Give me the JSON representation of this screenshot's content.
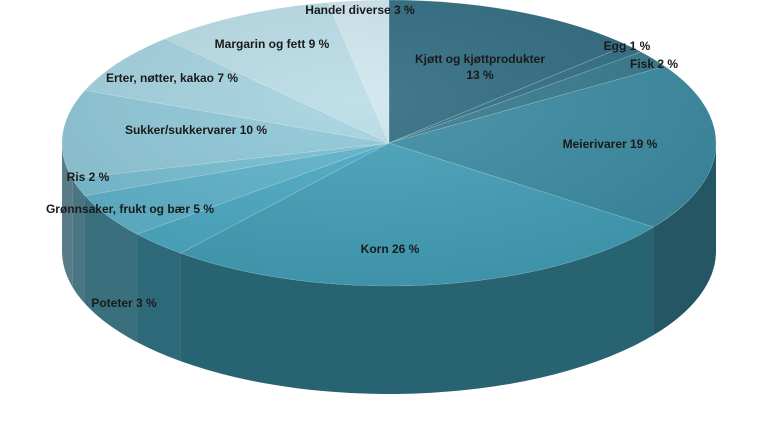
{
  "chart_data": {
    "type": "pie",
    "title": "",
    "style": "3d",
    "start_angle_deg": -90,
    "direction": "clockwise",
    "slices": [
      {
        "name": "Kjøtt og kjøttprodukter",
        "value": 13,
        "label": "Kjøtt og kjøttprodukter 13 %",
        "color": "#2f6b80"
      },
      {
        "name": "Egg",
        "value": 1,
        "label": "Egg 1 %",
        "color": "#306f84"
      },
      {
        "name": "Fisk",
        "value": 2,
        "label": "Fisk 2 %",
        "color": "#367a8e"
      },
      {
        "name": "Meierivarer",
        "value": 19,
        "label": "Meierivarer 19 %",
        "color": "#3b8ba2"
      },
      {
        "name": "Korn",
        "value": 26,
        "label": "Korn 26 %",
        "color": "#419fb8"
      },
      {
        "name": "Poteter",
        "value": 3,
        "label": "Poteter 3 %",
        "color": "#4aa9c4"
      },
      {
        "name": "Grønnsaker, frukt og bær",
        "value": 5,
        "label": "Grønnsaker, frukt og bær 5 %",
        "color": "#5db3cb"
      },
      {
        "name": "Ris",
        "value": 2,
        "label": "Ris 2 %",
        "color": "#76bed2"
      },
      {
        "name": "Sukker/sukkervarer",
        "value": 10,
        "label": "Sukker/sukkervarer 10 %",
        "color": "#8ec8d9"
      },
      {
        "name": "Erter, nøtter, kakao",
        "value": 7,
        "label": "Erter, nøtter, kakao 7 %",
        "color": "#a4d2e0"
      },
      {
        "name": "Margarin og fett",
        "value": 9,
        "label": "Margarin og fett 9 %",
        "color": "#b9dce7"
      },
      {
        "name": "Handel diverse",
        "value": 3,
        "label": "Handel diverse 3 %",
        "color": "#cfe6ee"
      }
    ]
  }
}
